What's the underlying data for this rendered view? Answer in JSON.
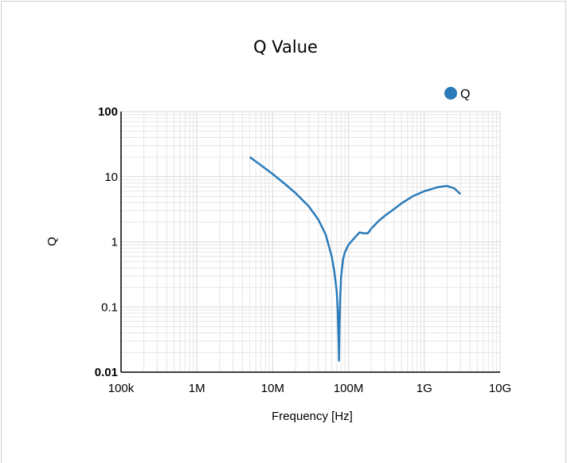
{
  "chart_data": {
    "type": "line",
    "title": "Q Value",
    "xlabel": "Frequency [Hz]",
    "ylabel": "Q",
    "x_scale": "log",
    "y_scale": "log",
    "xlim": [
      100000,
      10000000000
    ],
    "ylim": [
      0.01,
      100
    ],
    "x_ticks": [
      {
        "value": 100000,
        "label": "100k"
      },
      {
        "value": 1000000,
        "label": "1M"
      },
      {
        "value": 10000000,
        "label": "10M"
      },
      {
        "value": 100000000,
        "label": "100M"
      },
      {
        "value": 1000000000,
        "label": "1G"
      },
      {
        "value": 10000000000,
        "label": "10G"
      }
    ],
    "y_ticks": [
      {
        "value": 0.01,
        "label": "0.01"
      },
      {
        "value": 0.1,
        "label": "0.1"
      },
      {
        "value": 1,
        "label": "1"
      },
      {
        "value": 10,
        "label": "10"
      },
      {
        "value": 100,
        "label": "100"
      }
    ],
    "grid": true,
    "legend_position": "top-right",
    "series": [
      {
        "name": "Q",
        "color": "#2b7bba",
        "x": [
          5000000,
          7000000,
          10000000,
          15000000,
          20000000,
          30000000,
          40000000,
          50000000,
          60000000,
          65000000,
          70000000,
          72000000,
          74000000,
          75000000,
          76000000,
          78000000,
          80000000,
          85000000,
          90000000,
          100000000,
          120000000,
          140000000,
          160000000,
          180000000,
          200000000,
          250000000,
          300000000,
          400000000,
          500000000,
          700000000,
          1000000000,
          1500000000,
          2000000000,
          2500000000,
          3000000000
        ],
        "y": [
          20,
          15,
          11,
          7.5,
          5.6,
          3.5,
          2.2,
          1.3,
          0.6,
          0.35,
          0.17,
          0.09,
          0.03,
          0.015,
          0.05,
          0.15,
          0.3,
          0.55,
          0.7,
          0.9,
          1.15,
          1.4,
          1.35,
          1.35,
          1.6,
          2.1,
          2.5,
          3.2,
          3.9,
          5.0,
          6.0,
          6.9,
          7.2,
          6.6,
          5.4
        ]
      }
    ]
  }
}
